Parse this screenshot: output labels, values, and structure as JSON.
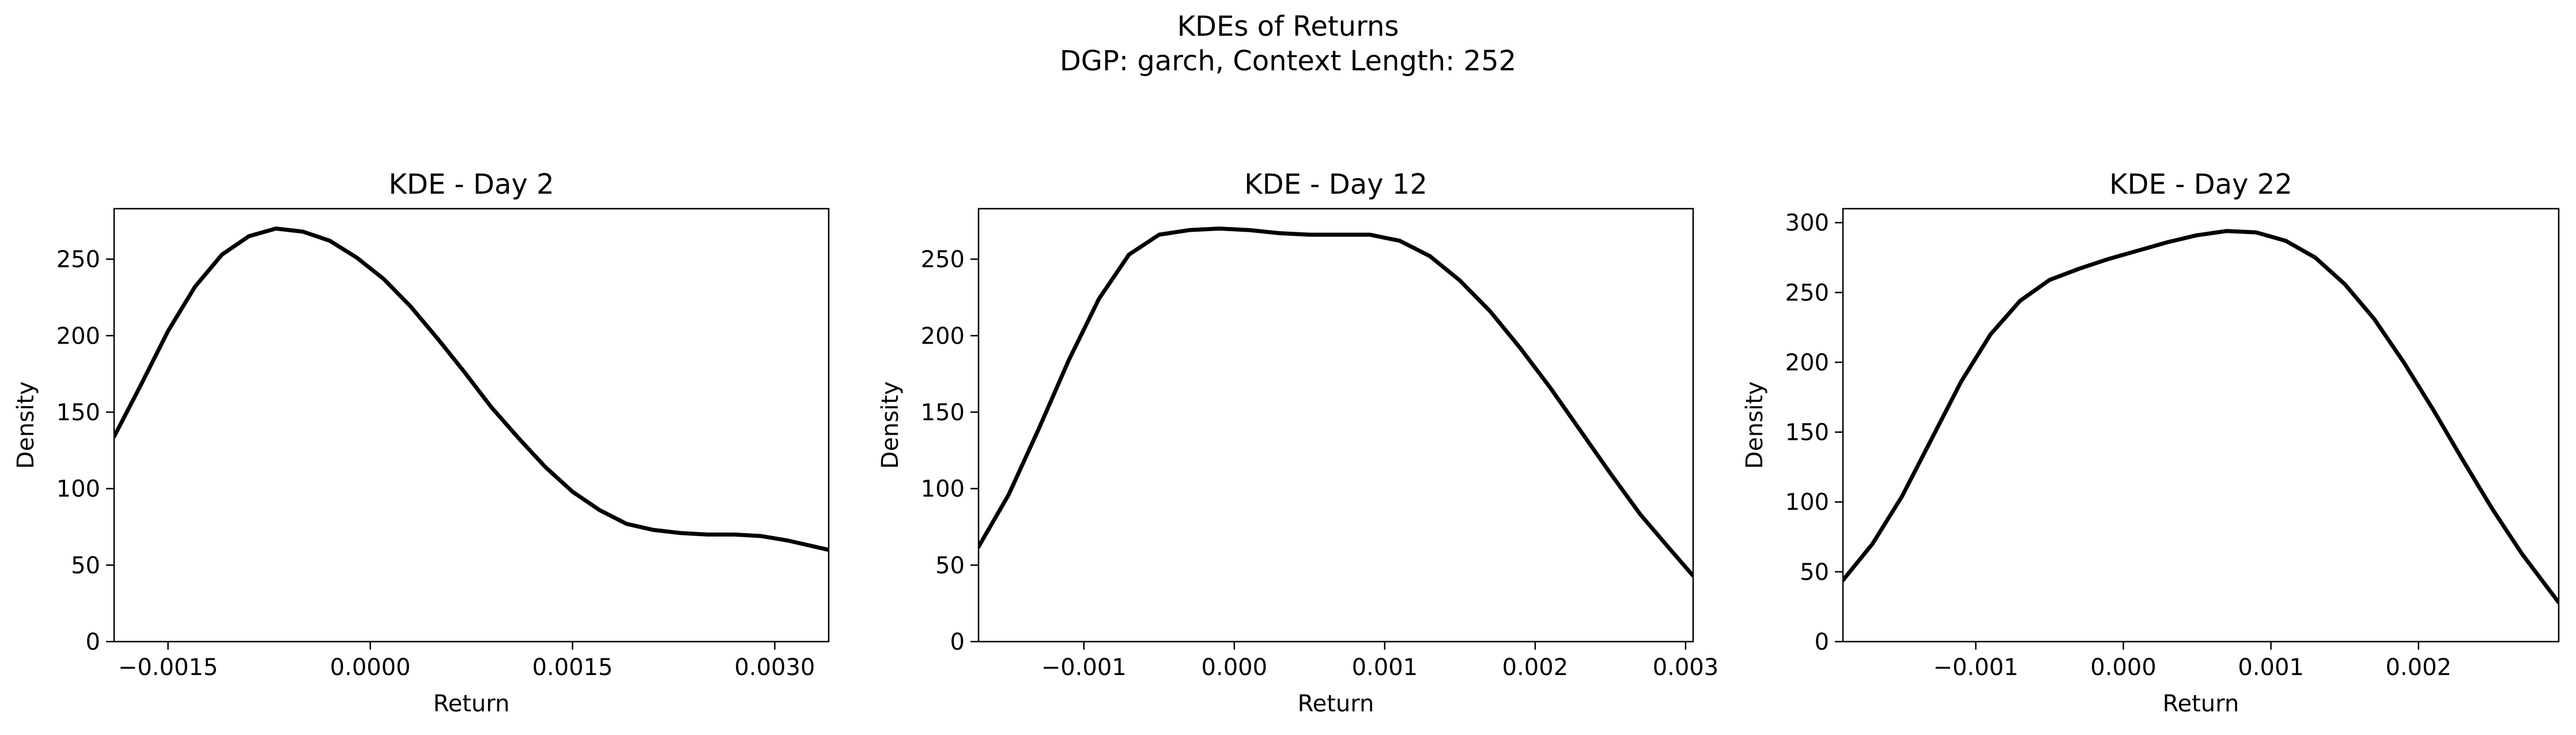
{
  "figure": {
    "title_line1": "KDEs of Returns",
    "title_line2": "DGP: garch, Context Length: 252"
  },
  "colors": {
    "line": "#000000",
    "axes": "#000000",
    "background": "#ffffff"
  },
  "chart_data": [
    {
      "type": "line",
      "title": "KDE - Day 2",
      "xlabel": "Return",
      "ylabel": "Density",
      "xlim": [
        -0.0019,
        0.0034
      ],
      "ylim": [
        0,
        283
      ],
      "xticks": [
        -0.0015,
        0.0,
        0.0015,
        0.003
      ],
      "xtick_labels": [
        "−0.0015",
        "0.0000",
        "0.0015",
        "0.0030"
      ],
      "yticks": [
        0,
        50,
        100,
        150,
        200,
        250
      ],
      "ytick_labels": [
        "0",
        "50",
        "100",
        "150",
        "200",
        "250"
      ],
      "grid": false,
      "series": [
        {
          "x": [
            -0.0019,
            -0.0017,
            -0.0015,
            -0.0013,
            -0.0011,
            -0.0009,
            -0.0007,
            -0.0005,
            -0.0003,
            -0.0001,
            0.0001,
            0.0003,
            0.0005,
            0.0007,
            0.0009,
            0.0011,
            0.0013,
            0.0015,
            0.0017,
            0.0019,
            0.0021,
            0.0023,
            0.0025,
            0.0027,
            0.0029,
            0.0031,
            0.0034
          ],
          "y": [
            134,
            168,
            203,
            232,
            253,
            265,
            270,
            268,
            262,
            251,
            237,
            219,
            198,
            176,
            153,
            133,
            114,
            98,
            86,
            77,
            73,
            71,
            70,
            70,
            69,
            66,
            60
          ]
        }
      ]
    },
    {
      "type": "line",
      "title": "KDE - Day 12",
      "xlabel": "Return",
      "ylabel": "Density",
      "xlim": [
        -0.0017,
        0.00305
      ],
      "ylim": [
        0,
        283
      ],
      "xticks": [
        -0.001,
        0.0,
        0.001,
        0.002,
        0.003
      ],
      "xtick_labels": [
        "−0.001",
        "0.000",
        "0.001",
        "0.002",
        "0.003"
      ],
      "yticks": [
        0,
        50,
        100,
        150,
        200,
        250
      ],
      "ytick_labels": [
        "0",
        "50",
        "100",
        "150",
        "200",
        "250"
      ],
      "grid": false,
      "series": [
        {
          "x": [
            -0.0017,
            -0.0015,
            -0.0013,
            -0.0011,
            -0.0009,
            -0.0007,
            -0.0005,
            -0.0003,
            -0.0001,
            0.0001,
            0.0003,
            0.0005,
            0.0007,
            0.0009,
            0.0011,
            0.0013,
            0.0015,
            0.0017,
            0.0019,
            0.0021,
            0.0023,
            0.0025,
            0.0027,
            0.0029,
            0.00305
          ],
          "y": [
            62,
            96,
            139,
            184,
            224,
            253,
            266,
            269,
            270,
            269,
            267,
            266,
            266,
            266,
            262,
            252,
            236,
            216,
            192,
            166,
            138,
            110,
            83,
            60,
            43
          ]
        }
      ]
    },
    {
      "type": "line",
      "title": "KDE - Day 22",
      "xlabel": "Return",
      "ylabel": "Density",
      "xlim": [
        -0.0019,
        0.00295
      ],
      "ylim": [
        0,
        310
      ],
      "xticks": [
        -0.001,
        0.0,
        0.001,
        0.002
      ],
      "xtick_labels": [
        "−0.001",
        "0.000",
        "0.001",
        "0.002"
      ],
      "yticks": [
        0,
        50,
        100,
        150,
        200,
        250,
        300
      ],
      "ytick_labels": [
        "0",
        "50",
        "100",
        "150",
        "200",
        "250",
        "300"
      ],
      "grid": false,
      "series": [
        {
          "x": [
            -0.0019,
            -0.0017,
            -0.0015,
            -0.0013,
            -0.0011,
            -0.0009,
            -0.0007,
            -0.0005,
            -0.0003,
            -0.0001,
            0.0001,
            0.0003,
            0.0005,
            0.0007,
            0.0009,
            0.0011,
            0.0013,
            0.0015,
            0.0017,
            0.0019,
            0.0021,
            0.0023,
            0.0025,
            0.0027,
            0.00295
          ],
          "y": [
            44,
            70,
            104,
            145,
            186,
            220,
            244,
            259,
            267,
            274,
            280,
            286,
            291,
            294,
            293,
            287,
            275,
            256,
            231,
            200,
            166,
            130,
            95,
            63,
            28
          ]
        }
      ]
    }
  ]
}
